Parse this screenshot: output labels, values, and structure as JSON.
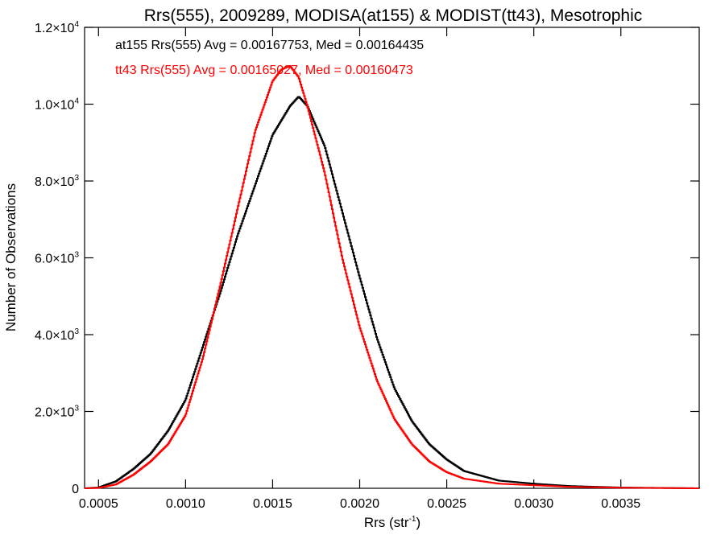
{
  "chart_data": {
    "type": "line",
    "title": "Rrs(555), 2009289, MODISA(at155) & MODIST(tt43), Mesotrophic",
    "xlabel": "Rrs (str",
    "xlabel_sup": "-1",
    "xlabel_tail": ")",
    "ylabel": "Number of Observations",
    "xlim": [
      0.00042,
      0.00395
    ],
    "ylim": [
      0,
      12000
    ],
    "grid": false,
    "x_ticks": [
      {
        "value": 0.0005,
        "label": "0.0005"
      },
      {
        "value": 0.001,
        "label": "0.0010"
      },
      {
        "value": 0.0015,
        "label": "0.0015"
      },
      {
        "value": 0.002,
        "label": "0.0020"
      },
      {
        "value": 0.0025,
        "label": "0.0025"
      },
      {
        "value": 0.003,
        "label": "0.0030"
      },
      {
        "value": 0.0035,
        "label": "0.0035"
      }
    ],
    "y_ticks": [
      {
        "value": 0,
        "mant": "0",
        "exp": ""
      },
      {
        "value": 2000,
        "mant": "2.0×10",
        "exp": "3"
      },
      {
        "value": 4000,
        "mant": "4.0×10",
        "exp": "3"
      },
      {
        "value": 6000,
        "mant": "6.0×10",
        "exp": "3"
      },
      {
        "value": 8000,
        "mant": "8.0×10",
        "exp": "3"
      },
      {
        "value": 10000,
        "mant": "1.0×10",
        "exp": "4"
      },
      {
        "value": 12000,
        "mant": "1.2×10",
        "exp": "4"
      }
    ],
    "annotations": [
      {
        "text": "at155 Rrs(555) Avg = 0.00167753, Med = 0.00164435",
        "color": "#000000"
      },
      {
        "text": "tt43 Rrs(555) Avg = 0.00165027, Med = 0.00160473",
        "color": "#ff0000"
      }
    ],
    "series": [
      {
        "color": "#000000",
        "x": [
          0.00042,
          0.0005,
          0.0006,
          0.0007,
          0.0008,
          0.0009,
          0.001,
          0.0011,
          0.0012,
          0.0013,
          0.0014,
          0.0015,
          0.0016,
          0.00165,
          0.0017,
          0.0018,
          0.0019,
          0.002,
          0.0021,
          0.0022,
          0.0023,
          0.0024,
          0.0025,
          0.0026,
          0.0028,
          0.003,
          0.0032,
          0.0035,
          0.00395
        ],
        "y": [
          0,
          20,
          180,
          500,
          900,
          1500,
          2300,
          3700,
          5100,
          6600,
          7900,
          9200,
          9950,
          10200,
          9950,
          8900,
          7200,
          5500,
          3900,
          2600,
          1750,
          1150,
          750,
          450,
          200,
          120,
          60,
          20,
          0
        ]
      },
      {
        "color": "#ff0000",
        "x": [
          0.00042,
          0.0005,
          0.0006,
          0.0007,
          0.0008,
          0.0009,
          0.001,
          0.0011,
          0.0012,
          0.0013,
          0.0014,
          0.0015,
          0.00155,
          0.0016,
          0.00165,
          0.0017,
          0.0018,
          0.0019,
          0.002,
          0.0021,
          0.0022,
          0.0023,
          0.0024,
          0.0025,
          0.0026,
          0.0028,
          0.003,
          0.0032,
          0.0035,
          0.00395
        ],
        "y": [
          0,
          10,
          100,
          350,
          700,
          1150,
          1900,
          3400,
          5300,
          7300,
          9300,
          10600,
          10900,
          11000,
          10700,
          9950,
          8200,
          6000,
          4200,
          2800,
          1800,
          1150,
          700,
          420,
          250,
          120,
          80,
          40,
          15,
          0
        ]
      }
    ]
  }
}
